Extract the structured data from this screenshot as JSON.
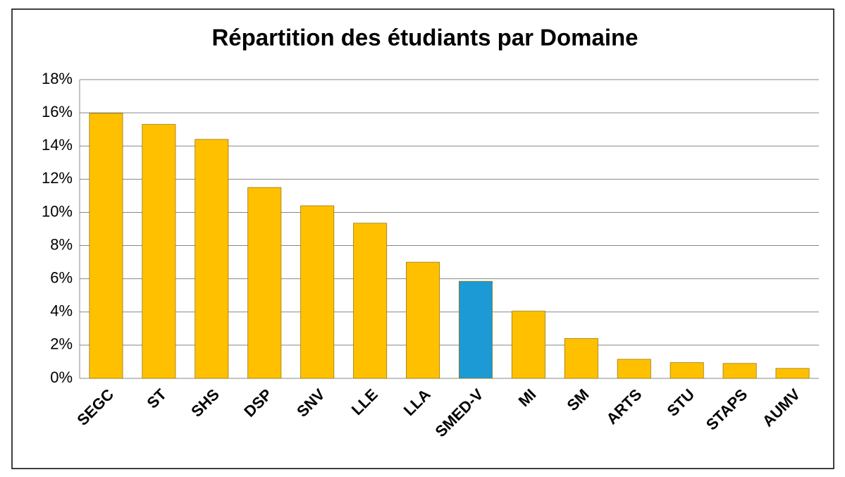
{
  "chart_data": {
    "type": "bar",
    "title": "Répartition des étudiants par Domaine",
    "categories": [
      "SEGC",
      "ST",
      "SHS",
      "DSP",
      "SNV",
      "LLE",
      "LLA",
      "SMED-V",
      "MI",
      "SM",
      "ARTS",
      "STU",
      "STAPS",
      "AUMV"
    ],
    "values": [
      15.97,
      15.3,
      14.4,
      11.5,
      10.4,
      9.35,
      7.0,
      5.85,
      4.05,
      2.4,
      1.15,
      0.95,
      0.9,
      0.6
    ],
    "colors": [
      "#FFC000",
      "#FFC000",
      "#FFC000",
      "#FFC000",
      "#FFC000",
      "#FFC000",
      "#FFC000",
      "#1B9AD6",
      "#FFC000",
      "#FFC000",
      "#FFC000",
      "#FFC000",
      "#FFC000",
      "#FFC000"
    ],
    "ylim": [
      0,
      18
    ],
    "yticks": [
      {
        "value": 0,
        "label": "0%"
      },
      {
        "value": 2,
        "label": "2%"
      },
      {
        "value": 4,
        "label": "4%"
      },
      {
        "value": 6,
        "label": "6%"
      },
      {
        "value": 8,
        "label": "8%"
      },
      {
        "value": 10,
        "label": "10%"
      },
      {
        "value": 12,
        "label": "12%"
      },
      {
        "value": 14,
        "label": "14%"
      },
      {
        "value": 16,
        "label": "16%"
      },
      {
        "value": 18,
        "label": "18%"
      }
    ],
    "grid": true
  }
}
